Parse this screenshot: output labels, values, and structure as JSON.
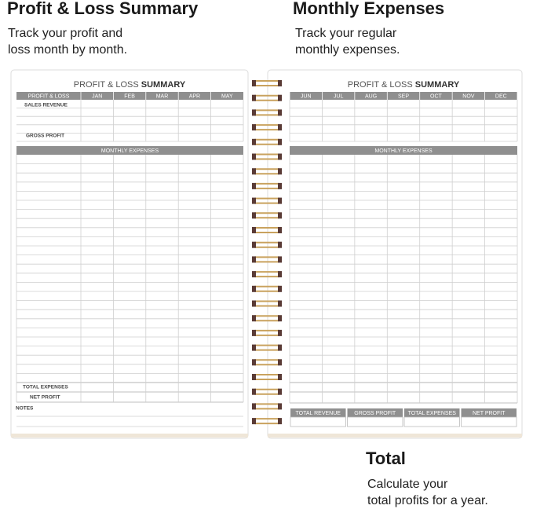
{
  "sections": [
    {
      "title": "Profit & Loss Summary",
      "description": [
        "Track your profit and",
        "loss month by month."
      ]
    },
    {
      "title": "Monthly Expenses",
      "description": [
        "Track your regular",
        "monthly expenses."
      ]
    },
    {
      "title": "Total",
      "description": [
        "Calculate your",
        "total profits for a year."
      ]
    }
  ],
  "left_page": {
    "title": [
      "PROFIT & LOSS",
      "SUMMARY"
    ],
    "summary_header": [
      "PROFIT & LOSS",
      "JAN",
      "FEB",
      "MAR",
      "APR",
      "MAY"
    ],
    "summary_rows": [
      "SALES REVENUE",
      "GROSS PROFIT"
    ],
    "expenses_header": "MONTHLY EXPENSES",
    "total_rows": [
      "TOTAL EXPENSES",
      "NET PROFIT"
    ],
    "notes": "NOTES"
  },
  "right_page": {
    "title": [
      "PROFIT & LOSS",
      "SUMMARY"
    ],
    "months": [
      "JUN",
      "JUL",
      "AUG",
      "SEP",
      "OCT",
      "NOV",
      "DEC"
    ],
    "expenses_header": "MONTHLY EXPENSES",
    "totals": [
      "TOTAL REVENUE",
      "GROSS PROFIT",
      "TOTAL EXPENSES",
      "NET PROFIT"
    ]
  }
}
